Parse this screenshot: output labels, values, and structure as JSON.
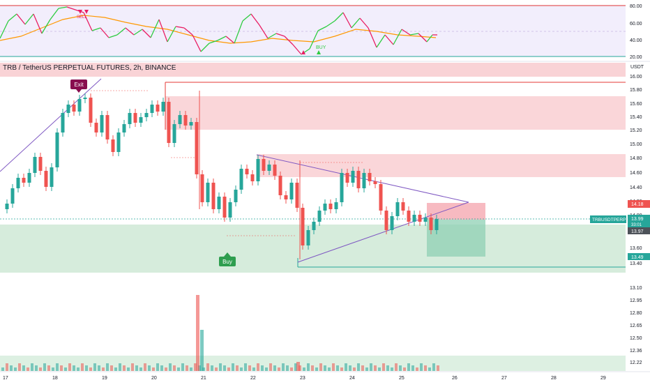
{
  "symbol_title": "TRB / TetherUS PERPETUAL FUTURES, 2h, BINANCE",
  "currency_label": "USDT",
  "colors": {
    "up": "#26a69a",
    "down": "#ef5350",
    "rsi_line": "#e91e63",
    "rsi_up": "#2ecc40",
    "ma_line": "#ff9800",
    "trend_line": "#7e57c2",
    "supply_zone": "#f8c8cc",
    "demand_zone": "#cfe9d6",
    "label_exit": "#880e4f",
    "label_buy": "#2e9e4f"
  },
  "indicator": {
    "y_ticks": [
      "80.00",
      "60.00",
      "40.00",
      "20.00"
    ],
    "buy_label": "BUY",
    "sell_label": "SELL"
  },
  "price_axis": {
    "ticks": [
      "16.00",
      "15.80",
      "15.60",
      "15.40",
      "15.20",
      "15.00",
      "14.80",
      "14.60",
      "14.40",
      "14.20",
      "14.00",
      "13.80",
      "13.60",
      "13.40",
      "13.10",
      "12.95",
      "12.80",
      "12.65",
      "12.50",
      "12.36",
      "12.22"
    ],
    "badges": {
      "stop": "14.18",
      "ticker": "TRBUSDTPERP",
      "last": "13.99",
      "countdown": "33:01",
      "prev": "13.97",
      "target": "13.49"
    }
  },
  "time_axis": [
    "17",
    "18",
    "19",
    "20",
    "21",
    "22",
    "23",
    "24",
    "25",
    "26",
    "27",
    "28",
    "29"
  ],
  "annotations": {
    "exit_label": "Exit",
    "buy_label": "Buy"
  },
  "chart_data": {
    "type": "candlestick",
    "title": "TRB / TetherUS PERPETUAL FUTURES, 2h, BINANCE",
    "x_categories": [
      "17",
      "18",
      "19",
      "20",
      "21",
      "22",
      "23",
      "24",
      "25",
      "26",
      "27",
      "28",
      "29"
    ],
    "y_unit": "USDT",
    "last_price": 13.99,
    "key_levels": {
      "stop_loss": 14.18,
      "entry": 13.99,
      "take_profit": 13.49
    },
    "zones": {
      "supply": [
        [
          15.95,
          16.05
        ],
        [
          15.25,
          15.7
        ],
        [
          14.55,
          14.85
        ]
      ],
      "demand": [
        [
          13.38,
          13.83
        ]
      ]
    },
    "volume_spike_day": "21",
    "indicator_levels": [
      80,
      60,
      40,
      20
    ]
  }
}
